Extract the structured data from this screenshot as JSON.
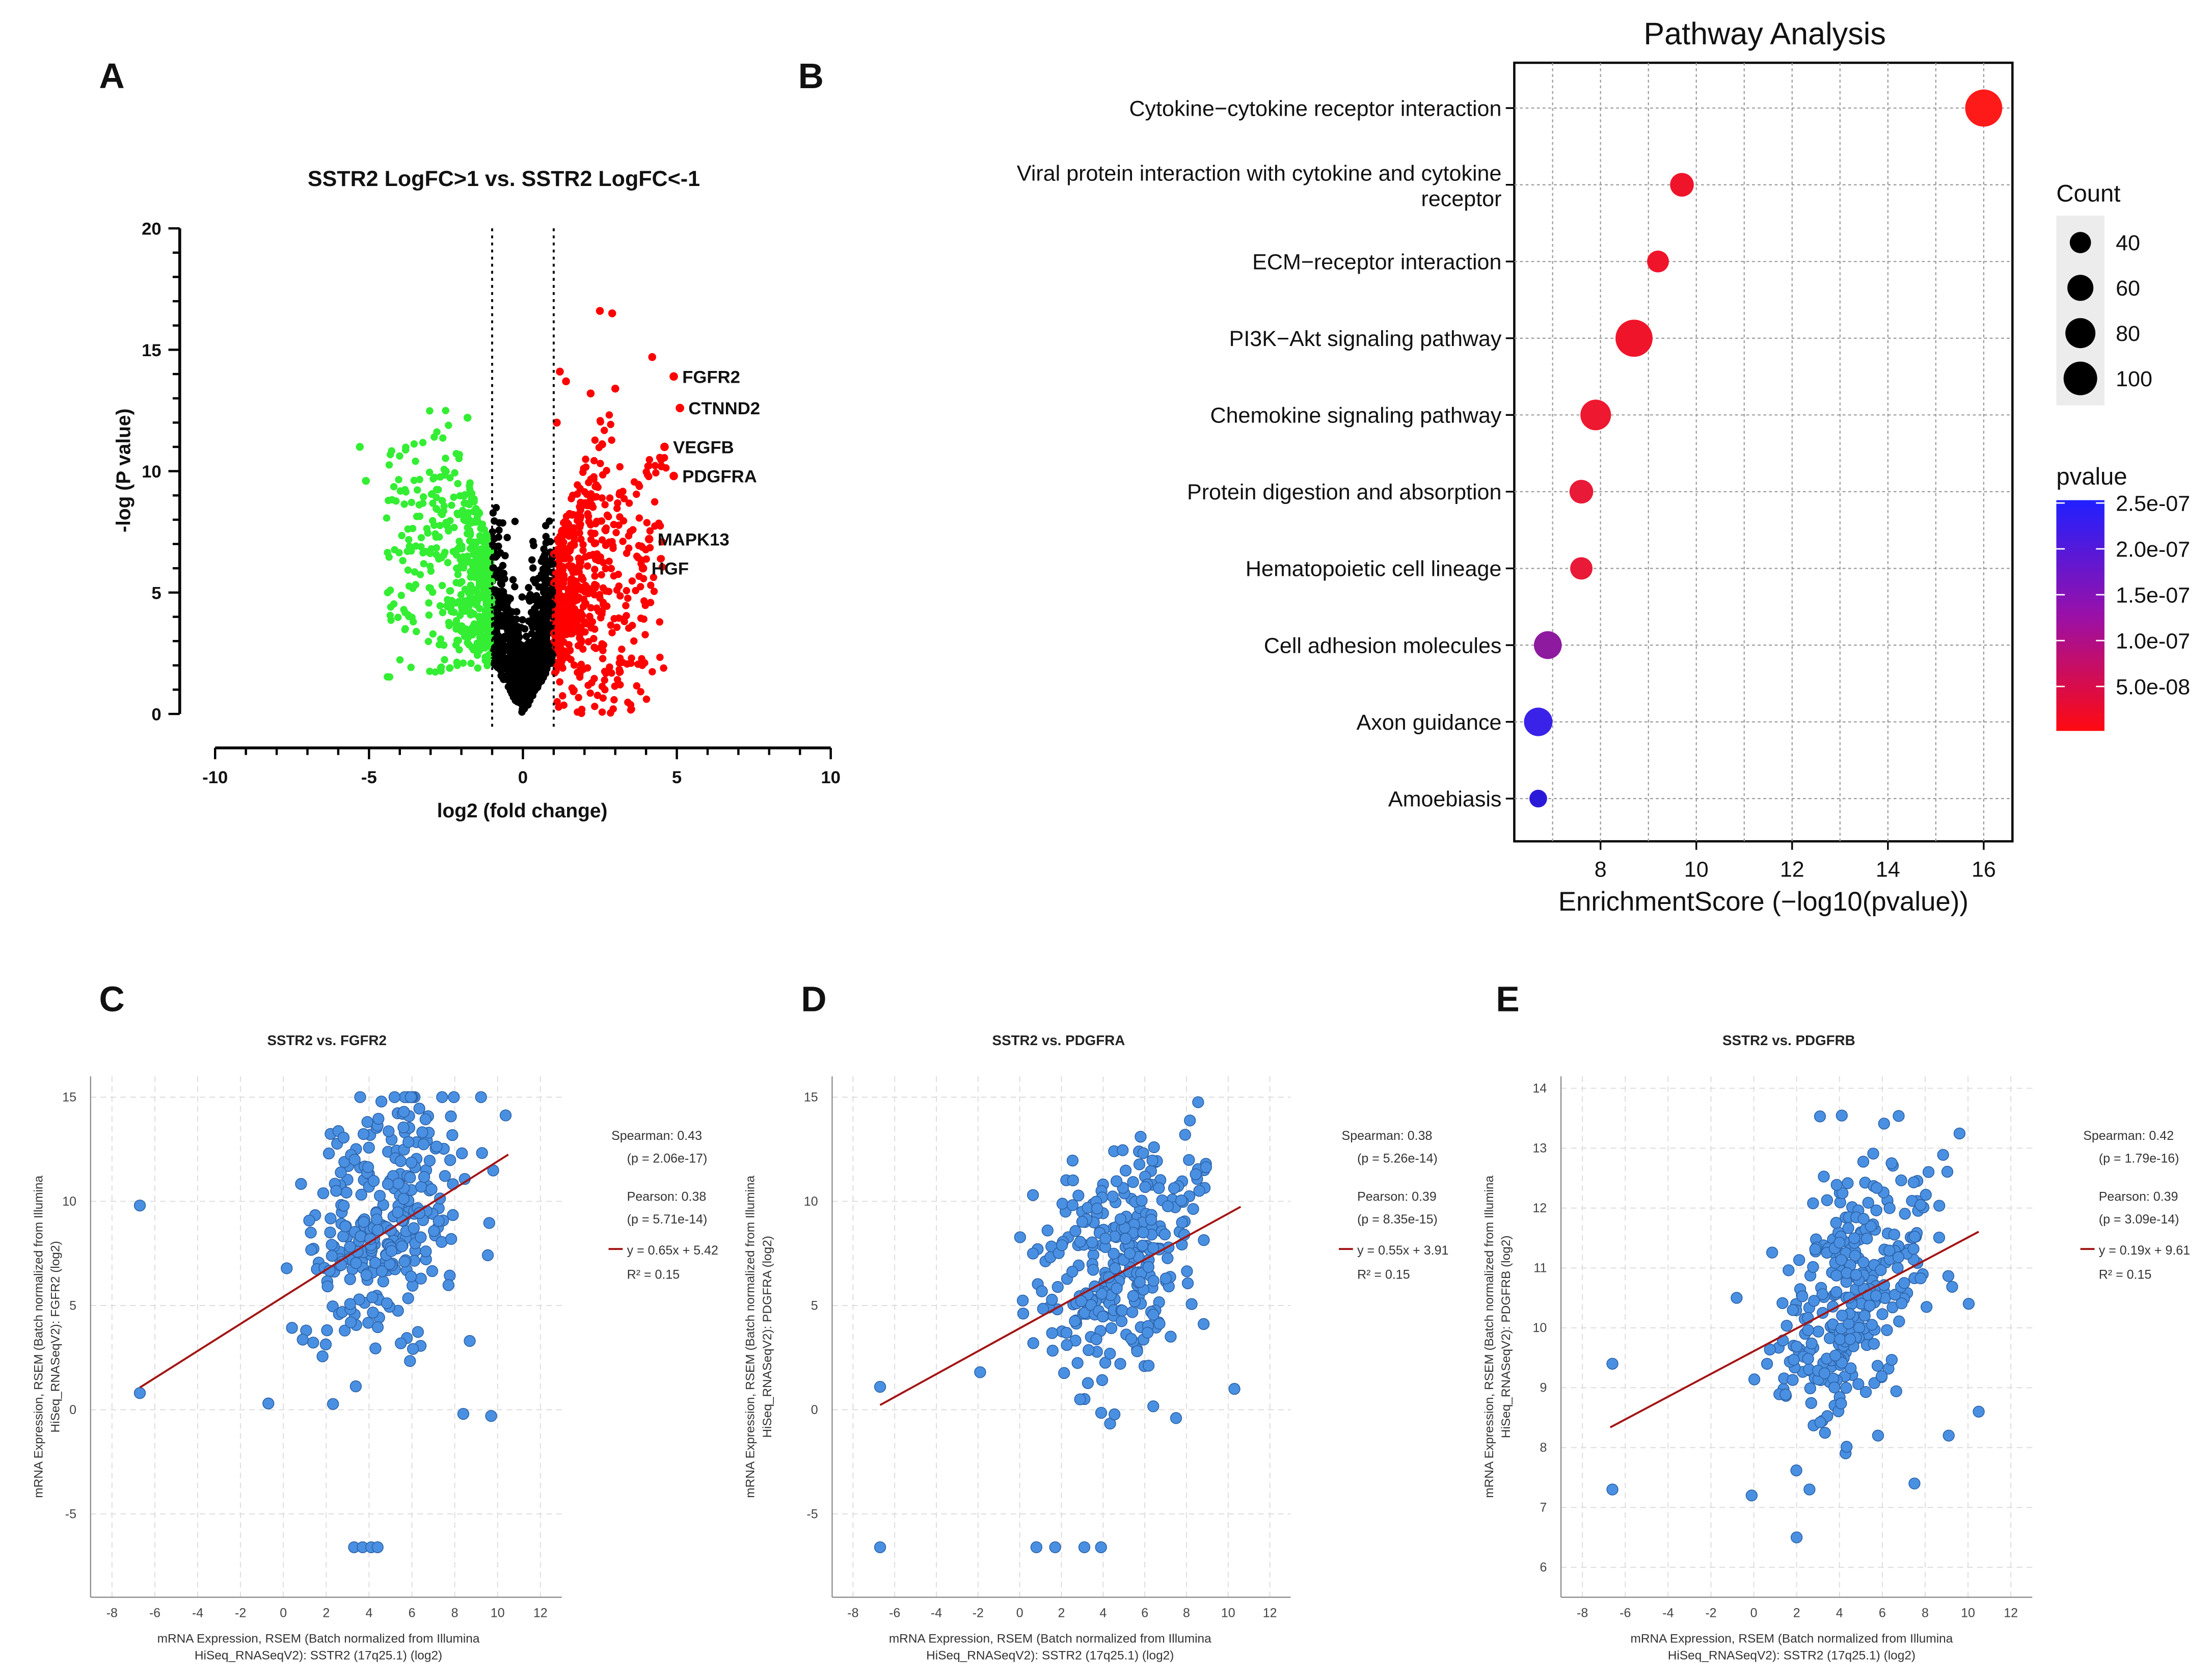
{
  "colors": {
    "up": "#ff0000",
    "down": "#33ee33",
    "ns": "#000000",
    "scatter_fill": "#4a90e2",
    "scatter_stroke": "#2d63a8",
    "regression": "#a31515",
    "grid": "#dddddd",
    "pathway_grid": "#999999"
  },
  "chart_data": [
    {
      "panel": "A",
      "type": "scatter",
      "title": "SSTR2 LogFC>1 vs. SSTR2 LogFC<-1",
      "xlabel": "log2 (fold change)",
      "ylabel": "-log (P value)",
      "xlim": [
        -10,
        10
      ],
      "ylim": [
        0,
        20
      ],
      "xticks": [
        "-10",
        "-5",
        "0",
        "5",
        "10"
      ],
      "yticks": [
        "0",
        "5",
        "10",
        "15",
        "20"
      ],
      "thresholds": [
        -1,
        1
      ],
      "labeled_genes": [
        {
          "gene": "FGFR2",
          "x": 4.9,
          "y": 13.9
        },
        {
          "gene": "CTNND2",
          "x": 5.1,
          "y": 12.6
        },
        {
          "gene": "VEGFB",
          "x": 4.6,
          "y": 11.0
        },
        {
          "gene": "PDGFRA",
          "x": 4.9,
          "y": 9.8
        },
        {
          "gene": "MAPK13",
          "x": 4.1,
          "y": 7.2
        },
        {
          "gene": "HGF",
          "x": 3.9,
          "y": 6.0
        }
      ],
      "highlight_points": [
        {
          "x": 2.5,
          "y": 16.6
        },
        {
          "x": 2.9,
          "y": 16.5
        },
        {
          "x": 4.2,
          "y": 14.7
        },
        {
          "x": 1.2,
          "y": 14.1
        },
        {
          "x": 1.4,
          "y": 13.7
        },
        {
          "x": 3.0,
          "y": 13.4
        },
        {
          "x": 2.2,
          "y": 13.2
        },
        {
          "x": 1.1,
          "y": 12.0
        },
        {
          "x": -5.3,
          "y": 11.0
        },
        {
          "x": -1.8,
          "y": 12.2
        },
        {
          "x": -5.1,
          "y": 9.6
        },
        {
          "x": 4.5,
          "y": 10.2
        }
      ]
    },
    {
      "panel": "B",
      "type": "scatter",
      "title": "Pathway Analysis",
      "xlabel": "EnrichmentScore (−log10(pvalue))",
      "xlim": [
        6.2,
        16.6
      ],
      "xticks": [
        8,
        10,
        12,
        14,
        16
      ],
      "categories": [
        {
          "name": "Cytokine−cytokine receptor interaction",
          "lines": [
            "Cytokine−cytokine receptor interaction"
          ],
          "score": 16.0,
          "count": 110,
          "pvalue": 1e-16,
          "color": "#ff1a1a"
        },
        {
          "name": "Viral protein interaction with cytokine and cytokine receptor",
          "lines": [
            "Viral protein interaction with cytokine and cytokine",
            "receptor"
          ],
          "score": 9.7,
          "count": 45,
          "pvalue": 2e-10,
          "color": "#f0142a"
        },
        {
          "name": "ECM−receptor interaction",
          "lines": [
            "ECM−receptor interaction"
          ],
          "score": 9.2,
          "count": 38,
          "pvalue": 6e-10,
          "color": "#f0142a"
        },
        {
          "name": "PI3K−Akt signaling pathway",
          "lines": [
            "PI3K−Akt signaling pathway"
          ],
          "score": 8.7,
          "count": 110,
          "pvalue": 2e-09,
          "color": "#f0142a"
        },
        {
          "name": "Chemokine signaling pathway",
          "lines": [
            "Chemokine signaling pathway"
          ],
          "score": 7.9,
          "count": 75,
          "pvalue": 1.3e-08,
          "color": "#ee1830"
        },
        {
          "name": "Protein digestion and absorption",
          "lines": [
            "Protein digestion and absorption"
          ],
          "score": 7.6,
          "count": 45,
          "pvalue": 2.5e-08,
          "color": "#e81a38"
        },
        {
          "name": "Hematopoietic cell lineage",
          "lines": [
            "Hematopoietic cell lineage"
          ],
          "score": 7.6,
          "count": 40,
          "pvalue": 2.6e-08,
          "color": "#e81a38"
        },
        {
          "name": "Cell adhesion molecules",
          "lines": [
            "Cell adhesion molecules"
          ],
          "score": 6.9,
          "count": 62,
          "pvalue": 1.5e-07,
          "color": "#8e1aa0"
        },
        {
          "name": "Axon guidance",
          "lines": [
            "Axon guidance"
          ],
          "score": 6.7,
          "count": 65,
          "pvalue": 2.3e-07,
          "color": "#3a22e8"
        },
        {
          "name": "Amoebiasis",
          "lines": [
            "Amoebiasis"
          ],
          "score": 6.7,
          "count": 25,
          "pvalue": 2.4e-07,
          "color": "#2a1ad8"
        }
      ],
      "size_legend": {
        "title": "Count",
        "values": [
          "40",
          "60",
          "80",
          "100"
        ]
      },
      "color_legend": {
        "title": "pvalue",
        "labels": [
          "2.5e-07",
          "2.0e-07",
          "1.5e-07",
          "1.0e-07",
          "5.0e-08"
        ]
      }
    },
    {
      "panel": "C",
      "type": "scatter",
      "title": "SSTR2 vs. FGFR2",
      "xlabel_lines": [
        "mRNA Expression, RSEM (Batch normalized from Illumina",
        "HiSeq_RNASeqV2): SSTR2 (17q25.1) (log2)"
      ],
      "ylabel_lines": [
        "mRNA Expression, RSEM (Batch normalized from Illumina",
        "HiSeq_RNASeqV2): FGFR2 (log2)"
      ],
      "xlim": [
        -9,
        13
      ],
      "ylim": [
        -9,
        16
      ],
      "xticks": [
        "-8",
        "-6",
        "-4",
        "-2",
        "0",
        "2",
        "4",
        "6",
        "8",
        "10",
        "12"
      ],
      "yticks": [
        "-5",
        "0",
        "5",
        "10",
        "15"
      ],
      "ytick_values": [
        -5,
        0,
        5,
        10,
        15
      ],
      "regression": {
        "slope": 0.65,
        "intercept": 5.42,
        "x_range": [
          -6.7,
          10.5
        ]
      },
      "stats": [
        "Spearman: 0.43",
        "(p = 2.06e-17)",
        "Pearson: 0.38",
        "(p = 5.71e-14)",
        "y = 0.65x + 5.42",
        "R² = 0.15"
      ],
      "outliers": [
        {
          "x": -6.7,
          "y": 9.8
        },
        {
          "x": -6.7,
          "y": 0.8
        },
        {
          "x": -0.7,
          "y": 0.3
        },
        {
          "x": 3.3,
          "y": -6.6
        },
        {
          "x": 3.7,
          "y": -6.6
        },
        {
          "x": 4.1,
          "y": -6.6
        },
        {
          "x": 4.4,
          "y": -6.6
        },
        {
          "x": 9.7,
          "y": -0.3
        },
        {
          "x": 8.4,
          "y": -0.2
        },
        {
          "x": 8.7,
          "y": 3.3
        }
      ]
    },
    {
      "panel": "D",
      "type": "scatter",
      "title": "SSTR2 vs. PDGFRA",
      "xlabel_lines": [
        "mRNA Expression, RSEM (Batch normalized from Illumina",
        "HiSeq_RNASeqV2): SSTR2 (17q25.1) (log2)"
      ],
      "ylabel_lines": [
        "mRNA Expression, RSEM (Batch normalized from Illumina",
        "HiSeq_RNASeqV2): PDGFRA (log2)"
      ],
      "xlim": [
        -9,
        13
      ],
      "ylim": [
        -9,
        16
      ],
      "xticks": [
        "-8",
        "-6",
        "-4",
        "-2",
        "0",
        "2",
        "4",
        "6",
        "8",
        "10",
        "12"
      ],
      "yticks": [
        "-5",
        "0",
        "5",
        "10",
        "15"
      ],
      "ytick_values": [
        -5,
        0,
        5,
        10,
        15
      ],
      "regression": {
        "slope": 0.55,
        "intercept": 3.91,
        "x_range": [
          -6.7,
          10.6
        ]
      },
      "stats": [
        "Spearman: 0.38",
        "(p = 5.26e-14)",
        "Pearson: 0.39",
        "(p = 8.35e-15)",
        "y = 0.55x + 3.91",
        "R² = 0.15"
      ],
      "outliers": [
        {
          "x": -6.7,
          "y": 1.1
        },
        {
          "x": -6.7,
          "y": -6.6
        },
        {
          "x": 0.8,
          "y": -6.6
        },
        {
          "x": 1.7,
          "y": -6.6
        },
        {
          "x": 3.1,
          "y": -6.6
        },
        {
          "x": 3.9,
          "y": -6.6
        },
        {
          "x": -1.9,
          "y": 1.8
        },
        {
          "x": 7.5,
          "y": -0.4
        },
        {
          "x": 5.8,
          "y": 13.1
        },
        {
          "x": 10.3,
          "y": 1.0
        }
      ]
    },
    {
      "panel": "E",
      "type": "scatter",
      "title": "SSTR2 vs. PDGFRB",
      "xlabel_lines": [
        "mRNA Expression, RSEM (Batch normalized from Illumina",
        "HiSeq_RNASeqV2): SSTR2 (17q25.1) (log2)"
      ],
      "ylabel_lines": [
        "mRNA Expression, RSEM (Batch normalized from Illumina",
        "HiSeq_RNASeqV2): PDGFRB (log2)"
      ],
      "xlim": [
        -9,
        13
      ],
      "ylim": [
        5.5,
        14.2
      ],
      "xticks": [
        "-8",
        "-6",
        "-4",
        "-2",
        "0",
        "2",
        "4",
        "6",
        "8",
        "10",
        "12"
      ],
      "yticks": [
        "6",
        "7",
        "8",
        "9",
        "10",
        "11",
        "12",
        "13",
        "14"
      ],
      "ytick_values": [
        6,
        7,
        8,
        9,
        10,
        11,
        12,
        13,
        14
      ],
      "regression": {
        "slope": 0.19,
        "intercept": 9.61,
        "x_range": [
          -6.7,
          10.5
        ]
      },
      "stats": [
        "Spearman: 0.42",
        "(p = 1.79e-16)",
        "Pearson: 0.39",
        "(p = 3.09e-14)",
        "y = 0.19x + 9.61",
        "R² = 0.15"
      ],
      "outliers": [
        {
          "x": -6.6,
          "y": 9.4
        },
        {
          "x": -6.6,
          "y": 7.3
        },
        {
          "x": -0.8,
          "y": 10.5
        },
        {
          "x": -0.1,
          "y": 7.2
        },
        {
          "x": 2.0,
          "y": 6.5
        },
        {
          "x": 7.5,
          "y": 7.4
        },
        {
          "x": 9.1,
          "y": 8.2
        },
        {
          "x": 10.5,
          "y": 8.6
        },
        {
          "x": 2.6,
          "y": 7.3
        },
        {
          "x": 5.8,
          "y": 8.2
        }
      ]
    }
  ]
}
